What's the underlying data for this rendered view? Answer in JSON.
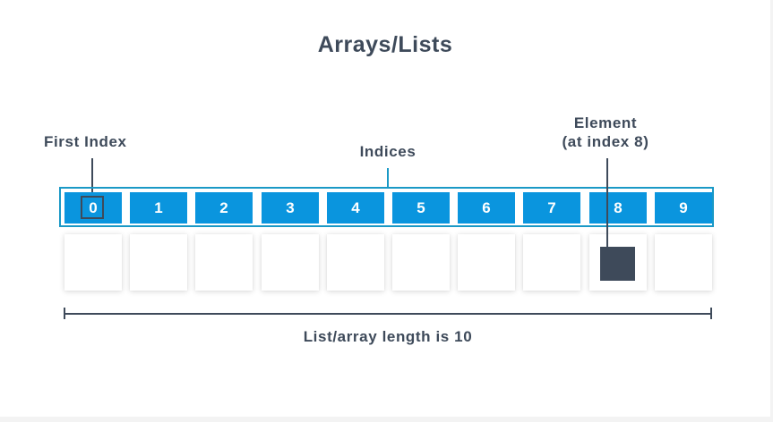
{
  "diagram": {
    "title": "Arrays/Lists",
    "first_index_label": "First Index",
    "indices_label": "Indices",
    "element_label_line1": "Element",
    "element_label_line2": "(at index 8)",
    "length_label": "List/array length is 10",
    "indices": [
      "0",
      "1",
      "2",
      "3",
      "4",
      "5",
      "6",
      "7",
      "8",
      "9"
    ],
    "highlighted_index": 8,
    "colors": {
      "index_cell": "#0a95de",
      "frame": "#1a99c6",
      "text": "#3e4a5a",
      "element": "#3e4a5a"
    }
  }
}
